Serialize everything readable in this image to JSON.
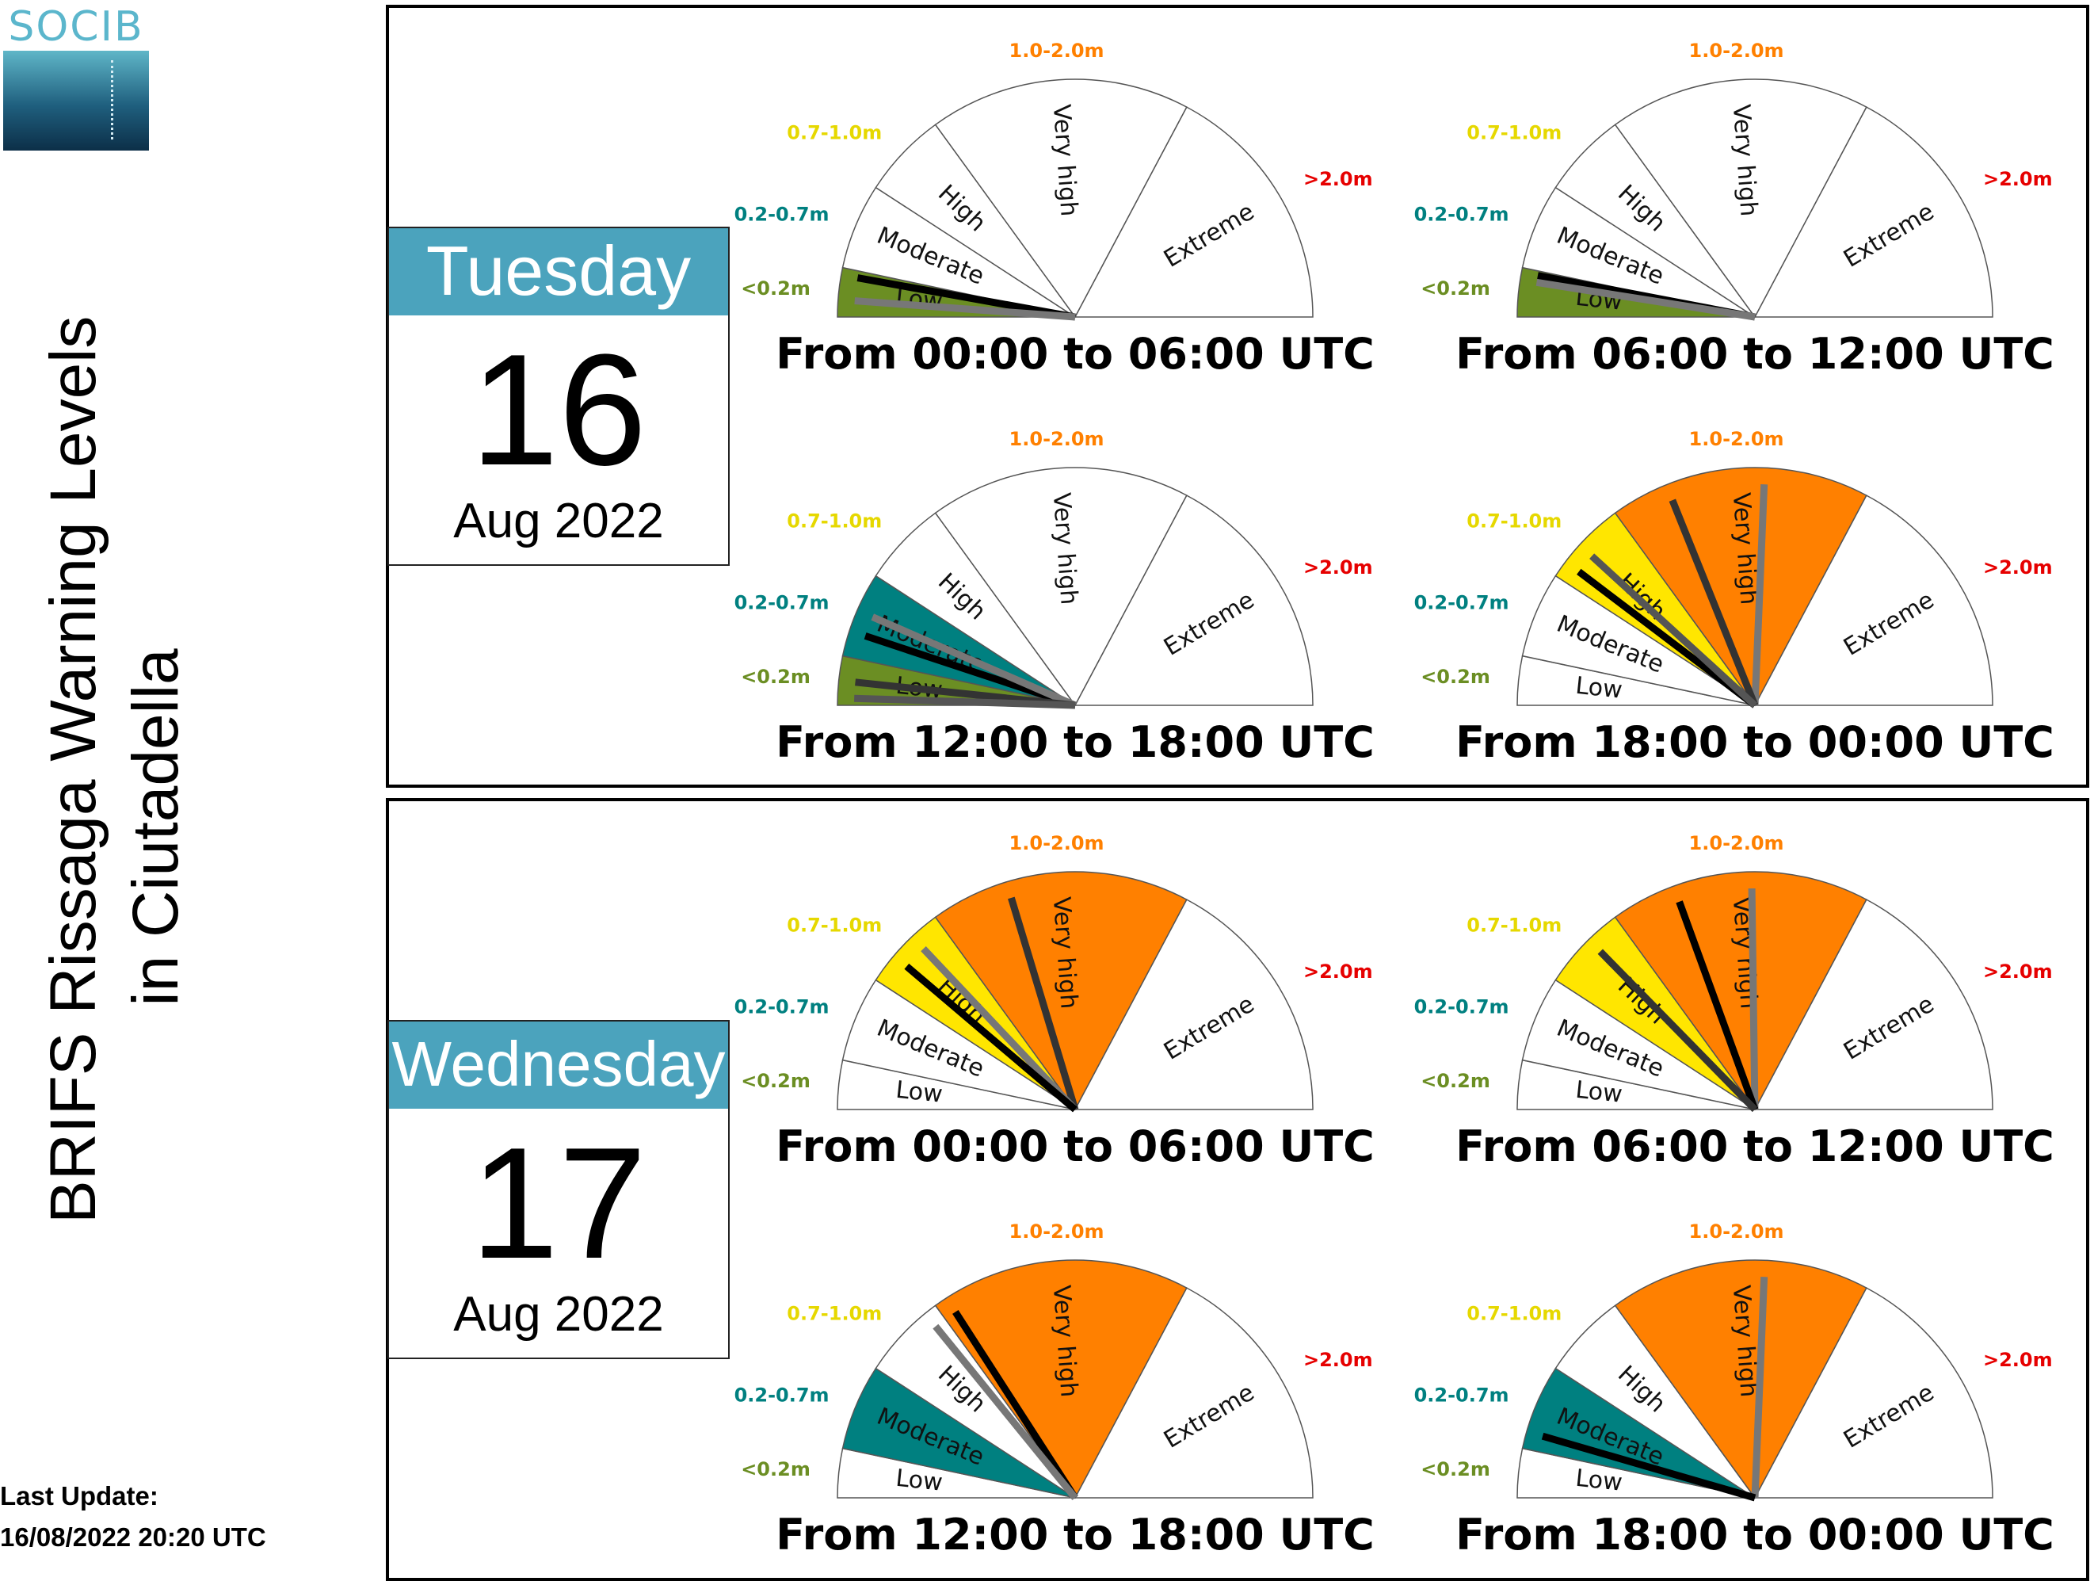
{
  "logo": {
    "text": "SOCIB"
  },
  "title": {
    "line1": "BRIFS Rissaga Warning Levels",
    "line2": "in Ciutadella"
  },
  "last_update": {
    "label": "Last Update:",
    "value": "16/08/2022 20:20 UTC"
  },
  "colors": {
    "low": "#6b8e23",
    "moderate": "#008080",
    "high": "#ffe600",
    "very_high": "#ff8000",
    "extreme": "#e60000",
    "header": "#4ba3bd"
  },
  "days": [
    {
      "weekday": "Tuesday",
      "day": "16",
      "month_year": "Aug 2022"
    },
    {
      "weekday": "Wednesday",
      "day": "17",
      "month_year": "Aug 2022"
    }
  ],
  "chart_data": {
    "type": "gauge",
    "categories": [
      "Low",
      "Moderate",
      "High",
      "Very high",
      "Extreme"
    ],
    "range_labels": [
      "<0.2m",
      "0.2-0.7m",
      "0.7-1.0m",
      "1.0-2.0m",
      ">2.0m"
    ],
    "range_colors": [
      "#6b8e23",
      "#008080",
      "#d4c400",
      "#ff8000",
      "#e60000"
    ],
    "gauges": [
      {
        "day": 0,
        "title": "From 00:00 to 06:00 UTC",
        "active_level": 0,
        "needles": [
          {
            "level": 0,
            "pos": 0.85,
            "shade": "#000000"
          },
          {
            "level": 0,
            "pos": 0.35,
            "shade": "#777777"
          }
        ]
      },
      {
        "day": 0,
        "title": "From 06:00 to 12:00 UTC",
        "active_level": 0,
        "needles": [
          {
            "level": 0,
            "pos": 0.9,
            "shade": "#000000"
          },
          {
            "level": 0,
            "pos": 0.75,
            "shade": "#777777"
          }
        ]
      },
      {
        "day": 0,
        "title": "From 12:00 to 18:00 UTC",
        "active_level": 1,
        "needles": [
          {
            "level": 1,
            "pos": 0.3,
            "shade": "#000000"
          },
          {
            "level": 1,
            "pos": 0.55,
            "shade": "#777777"
          },
          {
            "level": 0,
            "pos": 0.5,
            "shade": "#333333"
          },
          {
            "level": 0,
            "pos": 0.15,
            "shade": "#555555"
          }
        ]
      },
      {
        "day": 0,
        "title": "From 18:00 to 00:00 UTC",
        "active_level": 3,
        "needles": [
          {
            "level": 3,
            "pos": 0.6,
            "shade": "#777777"
          },
          {
            "level": 3,
            "pos": 0.22,
            "shade": "#333333"
          },
          {
            "level": 2,
            "pos": 0.2,
            "shade": "#000000"
          },
          {
            "level": 2,
            "pos": 0.45,
            "shade": "#555555"
          }
        ]
      },
      {
        "day": 1,
        "title": "From 00:00 to 06:00 UTC",
        "active_level": 3,
        "needles": [
          {
            "level": 3,
            "pos": 0.3,
            "shade": "#333333"
          },
          {
            "level": 2,
            "pos": 0.65,
            "shade": "#777777"
          },
          {
            "level": 2,
            "pos": 0.35,
            "shade": "#000000"
          }
        ]
      },
      {
        "day": 1,
        "title": "From 06:00 to 12:00 UTC",
        "active_level": 3,
        "needles": [
          {
            "level": 3,
            "pos": 0.55,
            "shade": "#777777"
          },
          {
            "level": 3,
            "pos": 0.25,
            "shade": "#000000"
          },
          {
            "level": 2,
            "pos": 0.6,
            "shade": "#333333"
          }
        ]
      },
      {
        "day": 1,
        "title": "From 12:00 to 18:00 UTC",
        "active_level": 3,
        "needles": [
          {
            "level": 3,
            "pos": 0.05,
            "shade": "#000000"
          },
          {
            "level": 2,
            "pos": 0.85,
            "shade": "#777777"
          }
        ]
      },
      {
        "day": 1,
        "title": "From 18:00 to 00:00 UTC",
        "active_level": 3,
        "needles": [
          {
            "level": 3,
            "pos": 0.6,
            "shade": "#777777"
          },
          {
            "level": 1,
            "pos": 0.2,
            "shade": "#000000"
          }
        ]
      }
    ]
  }
}
